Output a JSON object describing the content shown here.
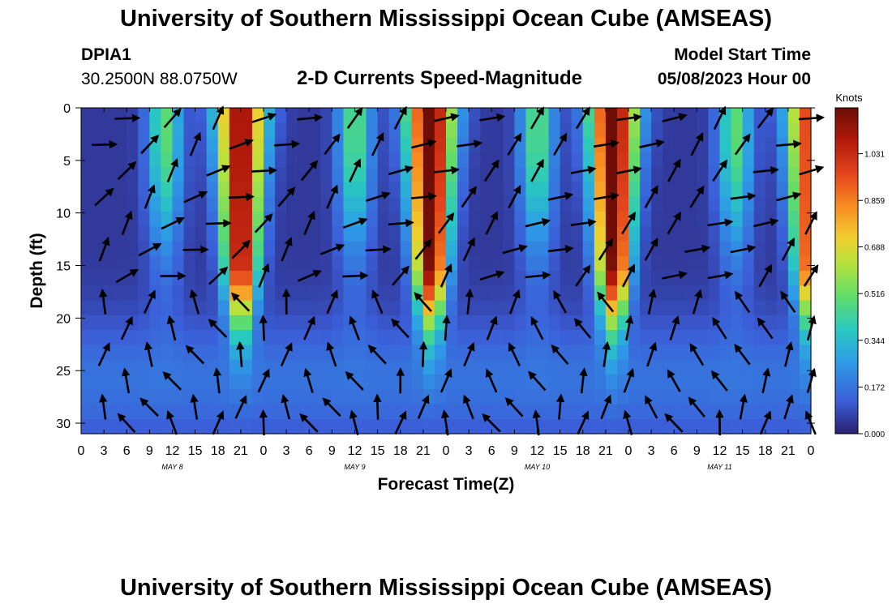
{
  "header": {
    "title": "University of Southern Mississippi Ocean Cube (AMSEAS)",
    "station": "DPIA1",
    "coords": "30.2500N  88.0750W",
    "plot_title": "2-D Currents Speed-Magnitude",
    "model_label": "Model Start Time",
    "model_start": "05/08/2023 Hour 00"
  },
  "footer": {
    "title": "University of Southern Mississippi Ocean Cube (AMSEAS)"
  },
  "chart_data": {
    "type": "heatmap",
    "title": "2-D Currents Speed-Magnitude",
    "xlabel": "Forecast Time(Z)",
    "ylabel": "Depth (ft)",
    "x_ticks": [
      "0",
      "3",
      "6",
      "9",
      "12",
      "15",
      "18",
      "21",
      "0",
      "3",
      "6",
      "9",
      "12",
      "15",
      "18",
      "21",
      "0",
      "3",
      "6",
      "9",
      "12",
      "15",
      "18",
      "21",
      "0",
      "3",
      "6",
      "9",
      "12",
      "15",
      "18",
      "21",
      "0"
    ],
    "x_range_hours": [
      0,
      96
    ],
    "day_labels": [
      {
        "label": "MAY 8",
        "hour": 12
      },
      {
        "label": "MAY 9",
        "hour": 36
      },
      {
        "label": "MAY 10",
        "hour": 60
      },
      {
        "label": "MAY 11",
        "hour": 84
      }
    ],
    "y_ticks": [
      "0",
      "5",
      "10",
      "15",
      "20",
      "25",
      "30"
    ],
    "ylim_ft": [
      0,
      31
    ],
    "colorbar": {
      "title": "Knots",
      "ticks": [
        "1.031",
        "0.859",
        "0.688",
        "0.516",
        "0.344",
        "0.172",
        "0.000"
      ],
      "range": [
        0,
        1.2
      ]
    },
    "peak_speed_hours": [
      21,
      46,
      70,
      96
    ],
    "peak_speed_knots": [
      1.1,
      1.15,
      1.15,
      0.95
    ],
    "vectors": "arrows show current direction at each 3-hour time step and depth level"
  }
}
